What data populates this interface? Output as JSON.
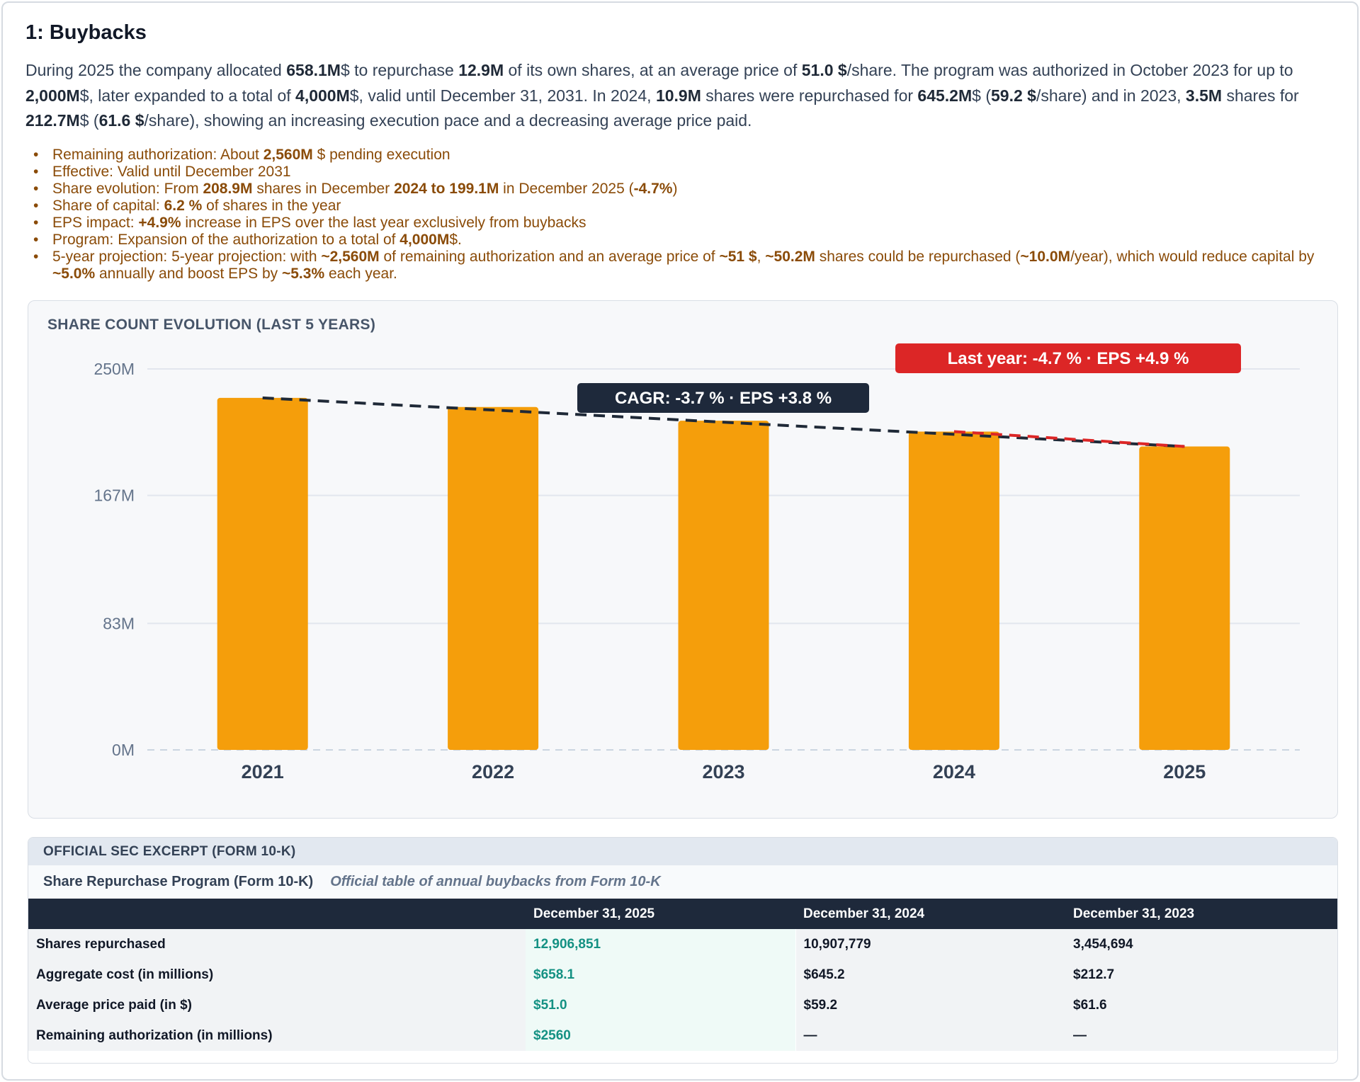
{
  "section": {
    "title": "1: Buybacks",
    "intro": {
      "p1": "During 2025 the company allocated ",
      "b1": "658.1M",
      "p2": "$ to repurchase ",
      "b2": "12.9M",
      "p3": " of its own shares, at an average price of ",
      "b3": "51.0 $",
      "p4": "/share. The program was authorized in October 2023 for up to ",
      "b4": "2,000M",
      "p5": "$, later expanded to a total of ",
      "b5": "4,000M",
      "p6": "$, valid until December 31, 2031. In 2024, ",
      "b6": "10.9M",
      "p7": " shares were repurchased for ",
      "b7": "645.2M",
      "p8": "$ (",
      "b8": "59.2 $",
      "p9": "/share) and in 2023, ",
      "b9": "3.5M",
      "p10": " shares for ",
      "b10": "212.7M",
      "p11": "$ (",
      "b11": "61.6 $",
      "p12": "/share), showing an increasing execution pace and a decreasing average price paid."
    },
    "points": [
      {
        "a": "Remaining authorization: About ",
        "b": "2,560M",
        "c": " $ pending execution"
      },
      {
        "a": "Effective: Valid until December 2031"
      },
      {
        "a": "Share evolution: From ",
        "b": "208.9M",
        "c": " shares in December ",
        "d": "2024 to 199.1M",
        "e": " in December 2025 (",
        "f": "-4.7%",
        "g": ")"
      },
      {
        "a": "Share of capital: ",
        "b": "6.2 %",
        "c": " of shares in the year"
      },
      {
        "a": "EPS impact: ",
        "b": "+4.9%",
        "c": " increase in EPS over the last year exclusively from buybacks"
      },
      {
        "a": "Program: Expansion of the authorization to a total of ",
        "b": "4,000M",
        "c": "$."
      },
      {
        "a": "5-year projection: 5-year projection: with ",
        "b": "~2,560M",
        "c": " of remaining authorization and an average price of ",
        "d": "~51 $",
        "e": ", ",
        "f": "~50.2M",
        "g": " shares could be repurchased (",
        "h": "~10.0M",
        "i": "/year), which would reduce capital by ",
        "j": "~5.0%",
        "k": " annually and boost EPS by ",
        "l": "~5.3%",
        "m": " each year."
      }
    ]
  },
  "chart_data": {
    "type": "bar",
    "title": "SHARE COUNT EVOLUTION (LAST 5 YEARS)",
    "categories": [
      "2021",
      "2022",
      "2023",
      "2024",
      "2025"
    ],
    "values": [
      231,
      225,
      216,
      208.9,
      199.1
    ],
    "y_ticks": [
      0,
      83,
      167,
      250
    ],
    "y_tick_labels": [
      "0M",
      "83M",
      "167M",
      "250M"
    ],
    "ylim": [
      0,
      250
    ],
    "bar_color": "#f59e0b",
    "trend_color": "#1f2937",
    "last_year_color": "#dc2626",
    "cagr_label": "CAGR: -3.7 % · EPS +3.8 %",
    "last_year_label": "Last year: -4.7 % · EPS +4.9 %"
  },
  "sec": {
    "header": "OFFICIAL SEC EXCERPT (FORM 10-K)",
    "subtitle": "Share Repurchase Program (Form 10-K)",
    "description": "Official table of annual buybacks from Form 10-K",
    "columns": [
      "",
      "December 31, 2025",
      "December 31, 2024",
      "December 31, 2023"
    ],
    "rows": [
      [
        "Shares repurchased",
        "12,906,851",
        "10,907,779",
        "3,454,694"
      ],
      [
        "Aggregate cost (in millions)",
        "$658.1",
        "$645.2",
        "$212.7"
      ],
      [
        "Average price paid (in $)",
        "$51.0",
        "$59.2",
        "$61.6"
      ],
      [
        "Remaining authorization (in millions)",
        "$2560",
        "—",
        "—"
      ]
    ]
  }
}
